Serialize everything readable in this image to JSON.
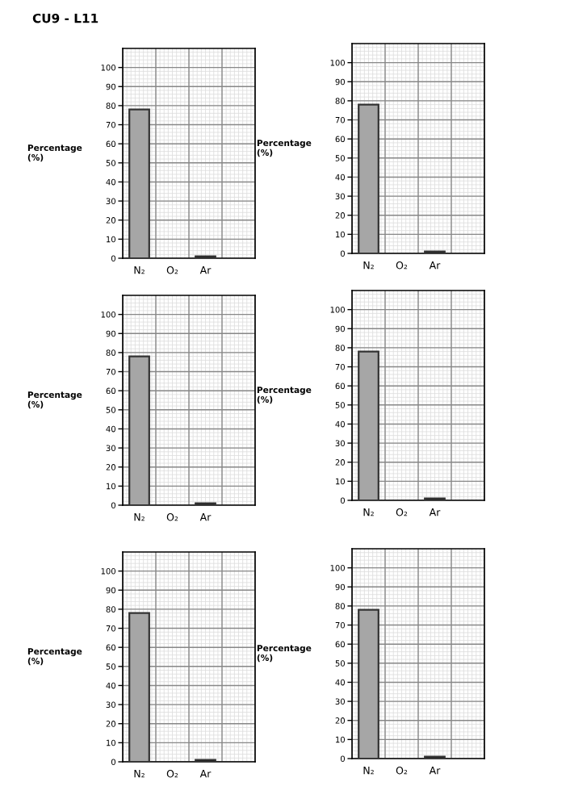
{
  "chart_data": [
    {
      "type": "bar",
      "title": "CU9 - L11",
      "ylabel": "Percentage\n(%)",
      "categories": [
        "N₂",
        "O₂",
        "Ar",
        null
      ],
      "values": [
        78,
        null,
        1,
        null
      ],
      "colors": [
        "#a6a6a6",
        "#a6a6a6",
        "#000000",
        "#a6a6a6"
      ],
      "ylim": [
        0,
        110
      ],
      "yticks": [
        0,
        10,
        20,
        30,
        40,
        50,
        60,
        70,
        80,
        90,
        100
      ],
      "grid": true
    },
    {
      "type": "bar",
      "ylabel": "Percentage\n(%)",
      "categories": [
        "N₂",
        "O₂",
        "Ar",
        null
      ],
      "values": [
        78,
        null,
        1,
        null
      ],
      "colors": [
        "#a6a6a6",
        "#a6a6a6",
        "#000000",
        "#a6a6a6"
      ],
      "ylim": [
        0,
        110
      ],
      "yticks": [
        0,
        10,
        20,
        30,
        40,
        50,
        60,
        70,
        80,
        90,
        100
      ],
      "grid": true
    },
    {
      "type": "bar",
      "ylabel": "Percentage\n(%)",
      "categories": [
        "N₂",
        "O₂",
        "Ar",
        null
      ],
      "values": [
        78,
        null,
        1,
        null
      ],
      "colors": [
        "#a6a6a6",
        "#a6a6a6",
        "#000000",
        "#a6a6a6"
      ],
      "ylim": [
        0,
        110
      ],
      "yticks": [
        0,
        10,
        20,
        30,
        40,
        50,
        60,
        70,
        80,
        90,
        100
      ],
      "grid": true
    },
    {
      "type": "bar",
      "ylabel": "Percentage\n(%)",
      "categories": [
        "N₂",
        "O₂",
        "Ar",
        null
      ],
      "values": [
        78,
        null,
        1,
        null
      ],
      "colors": [
        "#a6a6a6",
        "#a6a6a6",
        "#000000",
        "#a6a6a6"
      ],
      "ylim": [
        0,
        110
      ],
      "yticks": [
        0,
        10,
        20,
        30,
        40,
        50,
        60,
        70,
        80,
        90,
        100
      ],
      "grid": true
    },
    {
      "type": "bar",
      "ylabel": "Percentage\n(%)",
      "categories": [
        "N₂",
        "O₂",
        "Ar",
        null
      ],
      "values": [
        78,
        null,
        1,
        null
      ],
      "colors": [
        "#a6a6a6",
        "#a6a6a6",
        "#000000",
        "#a6a6a6"
      ],
      "ylim": [
        0,
        110
      ],
      "yticks": [
        0,
        10,
        20,
        30,
        40,
        50,
        60,
        70,
        80,
        90,
        100
      ],
      "grid": true
    },
    {
      "type": "bar",
      "ylabel": "Percentage\n(%)",
      "categories": [
        "N₂",
        "O₂",
        "Ar",
        null
      ],
      "values": [
        78,
        null,
        1,
        null
      ],
      "colors": [
        "#a6a6a6",
        "#a6a6a6",
        "#000000",
        "#a6a6a6"
      ],
      "ylim": [
        0,
        110
      ],
      "yticks": [
        0,
        10,
        20,
        30,
        40,
        50,
        60,
        70,
        80,
        90,
        100
      ],
      "grid": true
    }
  ]
}
